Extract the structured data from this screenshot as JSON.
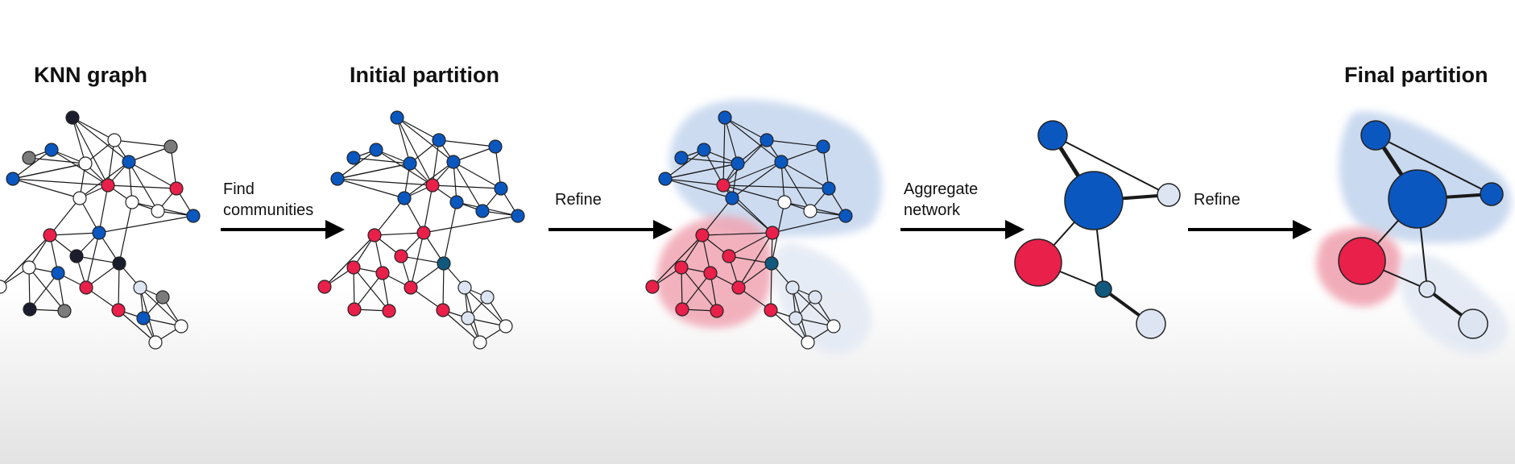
{
  "titles": {
    "knn": "KNN graph",
    "initial": "Initial partition",
    "final": "Final partition"
  },
  "steps": {
    "find_line1": "Find",
    "find_line2": "communities",
    "refine1": "Refine",
    "aggregate_line1": "Aggregate",
    "aggregate_line2": "network",
    "refine2": "Refine"
  },
  "colors": {
    "blue": "#0b57c0",
    "red": "#e8204a",
    "teal": "#11587e",
    "pale": "#dde5f2",
    "white": "#ffffff",
    "gray": "#7b7b7b",
    "black": "#1c1d2c",
    "blue_region": "#c4d5ee",
    "red_region": "#f0a4b2",
    "pale_region": "#e4eaf4",
    "edge": "#1a1a1a"
  }
}
